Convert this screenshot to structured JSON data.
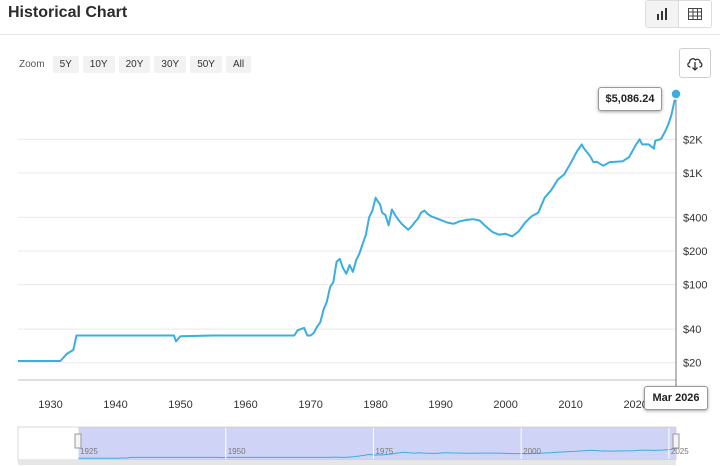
{
  "header": {
    "title": "Historical Chart"
  },
  "view_toggle": {
    "chart_icon": "bar-chart-icon",
    "table_icon": "table-icon"
  },
  "zoom": {
    "label": "Zoom",
    "options": [
      "5Y",
      "10Y",
      "20Y",
      "30Y",
      "50Y",
      "All"
    ]
  },
  "download": {
    "icon": "cloud-download-icon"
  },
  "tooltip": {
    "value": "$5,086.24",
    "date": "Mar 2026"
  },
  "colors": {
    "line": "#3aaee0",
    "navigator_fill": "#c7ccf6",
    "grid": "#e9e9e9"
  },
  "chart_data": {
    "type": "line",
    "y_scale": "log",
    "ylim": [
      14,
      6000
    ],
    "xlim": [
      1925,
      2026.2
    ],
    "y_tick_labels": [
      {
        "value": 20,
        "label": "$20"
      },
      {
        "value": 40,
        "label": "$40"
      },
      {
        "value": 100,
        "label": "$100"
      },
      {
        "value": 200,
        "label": "$200"
      },
      {
        "value": 400,
        "label": "$400"
      },
      {
        "value": 1000,
        "label": "$1K"
      },
      {
        "value": 2000,
        "label": "$2K"
      }
    ],
    "x_tick_labels": [
      {
        "value": 1930,
        "label": "1930"
      },
      {
        "value": 1940,
        "label": "1940"
      },
      {
        "value": 1950,
        "label": "1950"
      },
      {
        "value": 1960,
        "label": "1960"
      },
      {
        "value": 1970,
        "label": "1970"
      },
      {
        "value": 1980,
        "label": "1980"
      },
      {
        "value": 1990,
        "label": "1990"
      },
      {
        "value": 2000,
        "label": "2000"
      },
      {
        "value": 2010,
        "label": "2010"
      },
      {
        "value": 2020,
        "label": "2020"
      }
    ],
    "navigator_labels": [
      {
        "value": 1925,
        "label": "1925"
      },
      {
        "value": 1950,
        "label": "1950"
      },
      {
        "value": 1975,
        "label": "1975"
      },
      {
        "value": 2000,
        "label": "2000"
      },
      {
        "value": 2025,
        "label": "2025"
      }
    ],
    "series": [
      {
        "x": [
          1925,
          1931,
          1931.5,
          1932.5,
          1933,
          1933.5,
          1934,
          1940,
          1949,
          1949.3,
          1950,
          1955,
          1960,
          1965,
          1967.5,
          1968,
          1968.5,
          1969,
          1969.5,
          1970,
          1970.5,
          1971,
          1971.5,
          1972,
          1972.5,
          1973,
          1973.5,
          1974,
          1974.5,
          1975,
          1975.5,
          1976,
          1976.5,
          1977,
          1977.5,
          1978,
          1978.5,
          1979,
          1979.5,
          1980,
          1980.3,
          1980.7,
          1981,
          1981.5,
          1982,
          1982.5,
          1983,
          1983.5,
          1984,
          1984.5,
          1985,
          1985.5,
          1986,
          1986.5,
          1987,
          1987.5,
          1988,
          1988.5,
          1989,
          1990,
          1991,
          1992,
          1993,
          1994,
          1995,
          1996,
          1997,
          1998,
          1999,
          2000,
          2001,
          2002,
          2003,
          2004,
          2005,
          2006,
          2007,
          2008,
          2009,
          2010,
          2011,
          2011.7,
          2012,
          2013,
          2013.5,
          2014,
          2015,
          2016,
          2017,
          2018,
          2019,
          2020,
          2020.6,
          2021,
          2022,
          2022.8,
          2023,
          2023.8,
          2024,
          2024.5,
          2025,
          2025.5,
          2026.2
        ],
        "y": [
          20.7,
          20.7,
          20.7,
          24,
          25,
          26,
          35,
          35,
          35,
          31,
          34.5,
          35,
          35,
          35,
          35,
          39,
          40,
          41,
          35,
          35,
          37,
          42,
          46,
          60,
          70,
          95,
          105,
          160,
          170,
          140,
          125,
          150,
          130,
          165,
          190,
          230,
          280,
          400,
          460,
          600,
          560,
          520,
          440,
          420,
          340,
          470,
          420,
          380,
          350,
          330,
          310,
          330,
          360,
          390,
          440,
          460,
          430,
          410,
          400,
          380,
          360,
          350,
          370,
          380,
          385,
          375,
          330,
          295,
          280,
          285,
          270,
          300,
          360,
          410,
          440,
          600,
          700,
          870,
          970,
          1225,
          1570,
          1800,
          1670,
          1410,
          1250,
          1260,
          1160,
          1250,
          1260,
          1270,
          1390,
          1770,
          2000,
          1800,
          1800,
          1650,
          1940,
          2000,
          2060,
          2330,
          2700,
          3300,
          5086.24
        ]
      }
    ]
  }
}
